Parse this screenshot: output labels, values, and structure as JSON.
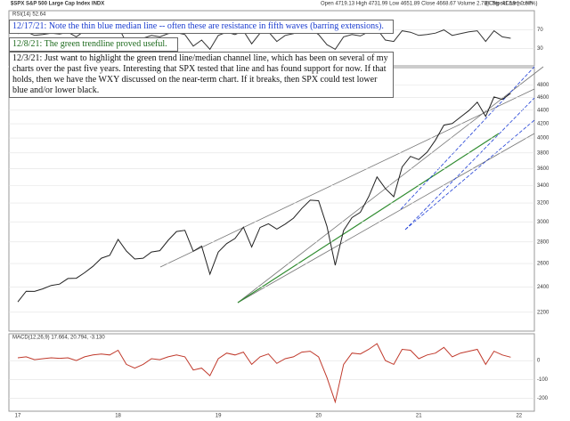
{
  "chart_data": [
    {
      "type": "line",
      "title": "$SPX S&P 500 Large Cap Index INDX",
      "subtitle": "Open 4719.13  High 4731.99  Low 4651.89  Close 4668.67  Volume 2.7B  Chg -41.19 (-0.87%)",
      "source": "@ StockCharts.com",
      "log_scale": true,
      "grid": true,
      "categories": [
        "17",
        null,
        null,
        null,
        null,
        null,
        null,
        null,
        null,
        null,
        null,
        null,
        "18",
        null,
        null,
        null,
        null,
        null,
        null,
        null,
        null,
        null,
        null,
        null,
        "19",
        null,
        null,
        null,
        null,
        null,
        null,
        null,
        null,
        null,
        null,
        null,
        "20",
        null,
        null,
        null,
        null,
        null,
        null,
        null,
        null,
        null,
        null,
        null,
        "21",
        null,
        null,
        null,
        null,
        null,
        null,
        null,
        null,
        null,
        null,
        null,
        "22"
      ],
      "series": [
        {
          "name": "$SPX",
          "color": "#222222",
          "values": [
            2279,
            2364,
            2363,
            2384,
            2412,
            2423,
            2470,
            2472,
            2519,
            2575,
            2648,
            2674,
            2824,
            2714,
            2641,
            2648,
            2705,
            2718,
            2816,
            2902,
            2914,
            2712,
            2760,
            2507,
            2704,
            2784,
            2834,
            2946,
            2752,
            2942,
            2980,
            2926,
            2977,
            3038,
            3141,
            3231,
            3226,
            2954,
            2585,
            2912,
            3044,
            3100,
            3271,
            3500,
            3363,
            3270,
            3622,
            3756,
            3714,
            3811,
            3973,
            4181,
            4204,
            4298,
            4395,
            4523,
            4308,
            4605,
            4567,
            4663,
            null
          ]
        }
      ],
      "ylim": [
        2100,
        5000
      ],
      "yticks": [
        2200,
        2400,
        2600,
        2800,
        3000,
        3200,
        3400,
        3600,
        3800,
        4000,
        4200,
        4400,
        4600,
        4800
      ],
      "annotations": [
        "12/17/21:  Note the thin blue median line -- often these are resistance in fifth waves (barring extensions).",
        "12/8/21:  The green trendline proved useful.",
        "12/3/21:  Just want to highlight the green trend line/median channel line, which has been on several of my charts over the past five years.  Interesting that SPX tested that line and has found support for now.  If that holds, then we have the WXY discussed on the near-term chart.  If it breaks, then SPX could test lower blue and/or lower black."
      ]
    },
    {
      "type": "line",
      "title": "RSI(14) 52.64",
      "series": [
        {
          "name": "RSI",
          "color": "#333333",
          "values": [
            62,
            66,
            58,
            60,
            63,
            61,
            65,
            55,
            68,
            74,
            72,
            70,
            78,
            42,
            45,
            52,
            58,
            55,
            62,
            64,
            60,
            35,
            48,
            28,
            58,
            65,
            60,
            68,
            40,
            63,
            66,
            45,
            58,
            62,
            70,
            72,
            60,
            38,
            28,
            55,
            60,
            57,
            66,
            72,
            48,
            45,
            68,
            65,
            58,
            60,
            63,
            70,
            58,
            62,
            66,
            68,
            45,
            68,
            55,
            52,
            null
          ]
        }
      ],
      "ylim": [
        0,
        100
      ],
      "yticks": [
        30,
        70
      ]
    },
    {
      "type": "line",
      "title": "MACD(12,26,9) 17.664, 20.794, -3.130",
      "series": [
        {
          "name": "MACD",
          "color": "#c0392b",
          "values": [
            15,
            20,
            5,
            10,
            15,
            12,
            15,
            0,
            20,
            30,
            35,
            30,
            55,
            -20,
            -40,
            -20,
            10,
            5,
            20,
            30,
            20,
            -50,
            -40,
            -80,
            10,
            40,
            30,
            45,
            -20,
            20,
            35,
            -15,
            10,
            20,
            45,
            50,
            20,
            -90,
            -220,
            -20,
            40,
            35,
            60,
            90,
            0,
            -20,
            60,
            55,
            10,
            30,
            40,
            70,
            20,
            40,
            50,
            60,
            -20,
            50,
            30,
            18,
            null
          ]
        }
      ],
      "ylim": [
        -250,
        100
      ],
      "yticks": [
        -200,
        -100,
        0
      ]
    }
  ]
}
